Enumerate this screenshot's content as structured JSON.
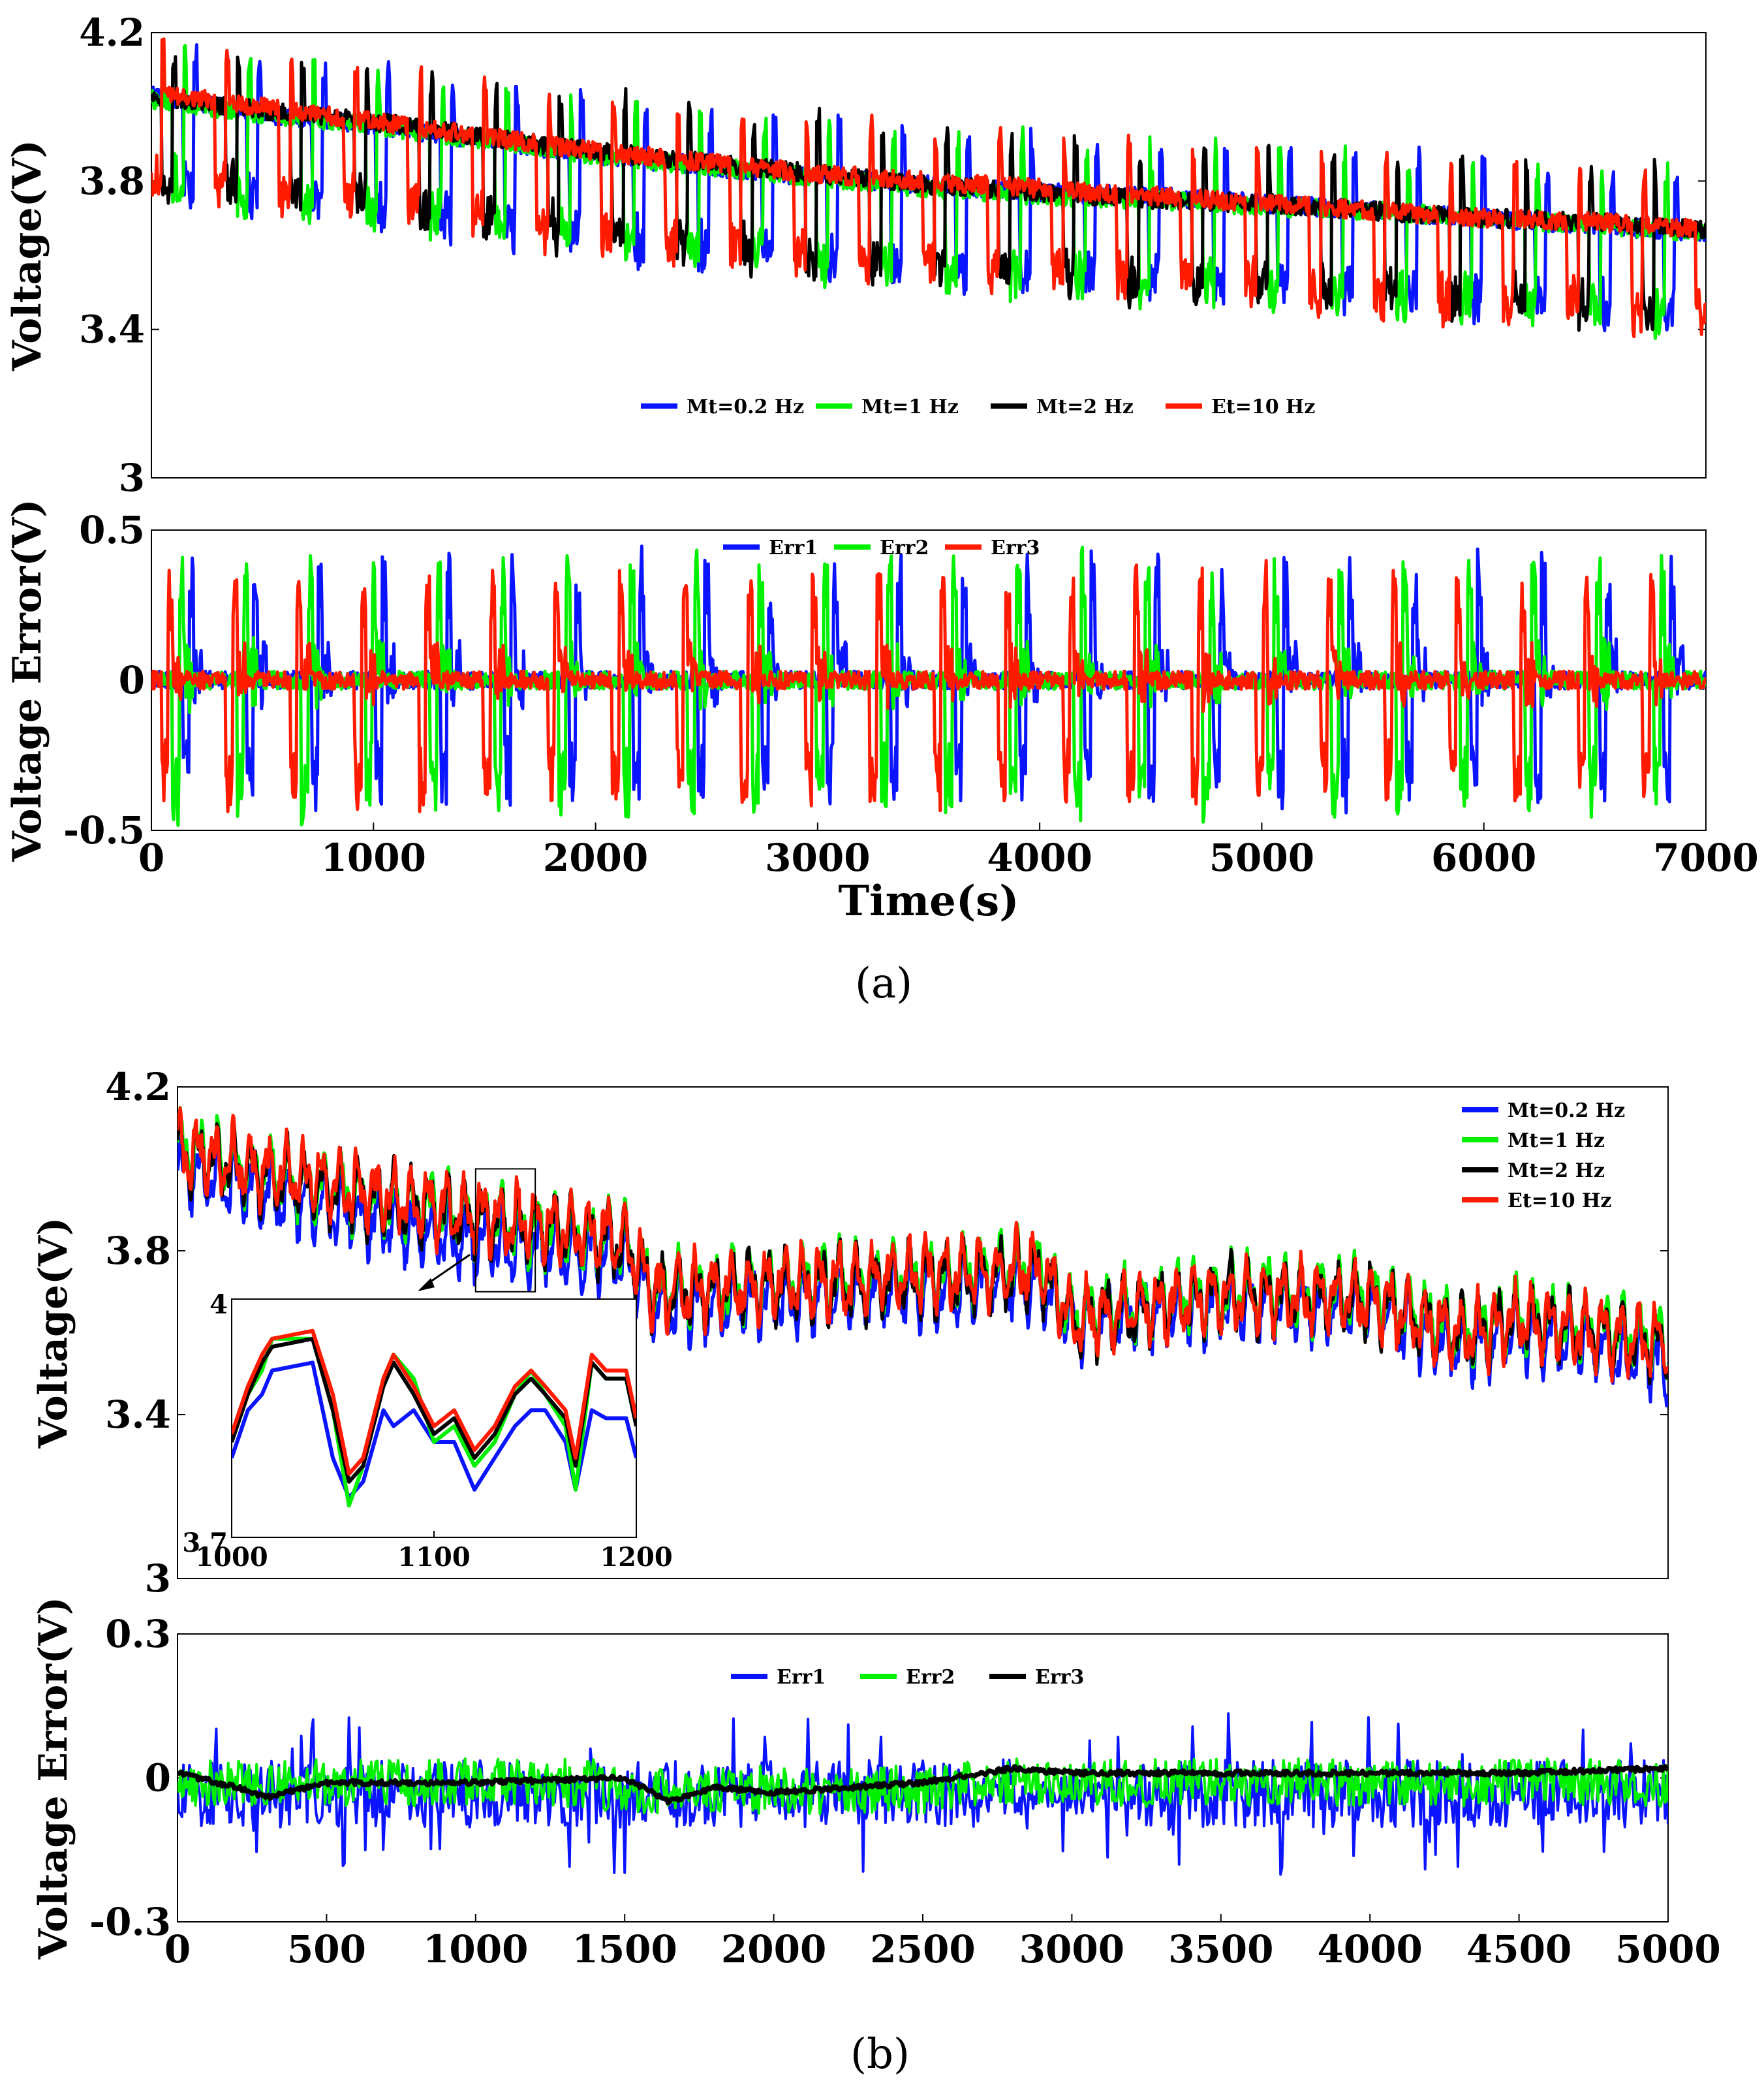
{
  "figure": {
    "panel_a_label": "(a)",
    "panel_b_label": "(b)"
  },
  "chart_data": [
    {
      "id": "a_voltage",
      "type": "line",
      "title": "",
      "xlabel": "",
      "ylabel": "Voltage(V)",
      "xlim": [
        0,
        7000
      ],
      "ylim": [
        3,
        4.2
      ],
      "yticks": [
        "4.2",
        "3.8",
        "3.4",
        "3"
      ],
      "ytick_values": [
        4.2,
        3.8,
        3.4,
        3.0
      ],
      "legend": [
        "Mt=0.2 Hz",
        "Mt=1 Hz",
        "Mt=2 Hz",
        "Et=10 Hz"
      ],
      "legend_position": "bottom-center",
      "series": [
        {
          "name": "Mt=0.2 Hz",
          "color": "#0a14ff",
          "x": [
            0,
            500,
            1000,
            1500,
            2000,
            2500,
            3000,
            3500,
            4000,
            4500,
            5000,
            5500,
            6000,
            6500,
            7000
          ],
          "values": [
            4.03,
            3.98,
            3.95,
            3.91,
            3.87,
            3.84,
            3.81,
            3.79,
            3.77,
            3.76,
            3.74,
            3.72,
            3.7,
            3.68,
            3.66
          ]
        },
        {
          "name": "Mt=1 Hz",
          "color": "#00f000",
          "x": [
            0,
            500,
            1000,
            1500,
            2000,
            2500,
            3000,
            3500,
            4000,
            4500,
            5000,
            5500,
            6000,
            6500,
            7000
          ],
          "values": [
            4.02,
            3.98,
            3.95,
            3.91,
            3.87,
            3.84,
            3.81,
            3.78,
            3.76,
            3.75,
            3.73,
            3.72,
            3.7,
            3.68,
            3.66
          ]
        },
        {
          "name": "Mt=2 Hz",
          "color": "#000000",
          "x": [
            0,
            500,
            1000,
            1500,
            2000,
            2500,
            3000,
            3500,
            4000,
            4500,
            5000,
            5500,
            6000,
            6500,
            7000
          ],
          "values": [
            4.03,
            3.99,
            3.96,
            3.92,
            3.88,
            3.85,
            3.82,
            3.79,
            3.77,
            3.75,
            3.74,
            3.72,
            3.7,
            3.69,
            3.67
          ]
        },
        {
          "name": "Et=10 Hz",
          "color": "#ff1a00",
          "x": [
            0,
            500,
            1000,
            1500,
            2000,
            2500,
            3000,
            3500,
            4000,
            4500,
            5000,
            5500,
            6000,
            6500,
            7000
          ],
          "values": [
            4.04,
            4.0,
            3.96,
            3.92,
            3.88,
            3.85,
            3.82,
            3.8,
            3.78,
            3.76,
            3.74,
            3.72,
            3.7,
            3.69,
            3.67
          ]
        }
      ]
    },
    {
      "id": "a_error",
      "type": "line",
      "xlabel": "Time(s)",
      "ylabel": "Voltage Error(V)",
      "xlim": [
        0,
        7000
      ],
      "ylim": [
        -0.5,
        0.5
      ],
      "yticks": [
        "0.5",
        "0",
        "-0.5"
      ],
      "ytick_values": [
        0.5,
        0,
        -0.5
      ],
      "xticks": [
        "0",
        "1000",
        "2000",
        "3000",
        "4000",
        "5000",
        "6000",
        "7000"
      ],
      "xtick_values": [
        0,
        1000,
        2000,
        3000,
        4000,
        5000,
        6000,
        7000
      ],
      "legend": [
        "Err1",
        "Err2",
        "Err3"
      ],
      "legend_position": "top-center",
      "series": [
        {
          "name": "Err1",
          "color": "#0a14ff",
          "amplitude": [
            -0.42,
            0.44
          ]
        },
        {
          "name": "Err2",
          "color": "#00f000",
          "amplitude": [
            -0.46,
            0.42
          ]
        },
        {
          "name": "Err3",
          "color": "#ff1a00",
          "amplitude": [
            -0.42,
            0.38
          ]
        }
      ]
    },
    {
      "id": "b_voltage",
      "type": "line",
      "ylabel": "Voltage(V)",
      "xlim": [
        0,
        5000
      ],
      "ylim": [
        3,
        4.2
      ],
      "yticks": [
        "4.2",
        "3.8",
        "3.4",
        "3"
      ],
      "ytick_values": [
        4.2,
        3.8,
        3.4,
        3.0
      ],
      "legend": [
        "Mt=0.2 Hz",
        "Mt=1 Hz",
        "Mt=2 Hz",
        "Et=10 Hz"
      ],
      "legend_position": "top-right",
      "series": [
        {
          "name": "Mt=0.2 Hz",
          "color": "#0a14ff",
          "x": [
            0,
            500,
            1000,
            1500,
            1600,
            2000,
            2500,
            2900,
            3000,
            3500,
            4000,
            4300,
            4500,
            5000
          ],
          "values": [
            4.0,
            3.9,
            3.82,
            3.78,
            3.66,
            3.68,
            3.7,
            3.72,
            3.62,
            3.67,
            3.66,
            3.56,
            3.6,
            3.52
          ]
        },
        {
          "name": "Mt=1 Hz",
          "color": "#00f000",
          "x": [
            0,
            500,
            1000,
            1500,
            1600,
            2000,
            2500,
            2900,
            3000,
            3500,
            4000,
            4300,
            4500,
            5000
          ],
          "values": [
            4.05,
            3.95,
            3.88,
            3.82,
            3.7,
            3.72,
            3.74,
            3.76,
            3.64,
            3.7,
            3.69,
            3.6,
            3.64,
            3.58
          ]
        },
        {
          "name": "Mt=2 Hz",
          "color": "#000000",
          "x": [
            0,
            500,
            1000,
            1500,
            1600,
            2000,
            2500,
            2900,
            3000,
            3500,
            4000,
            4300,
            4500,
            5000
          ],
          "values": [
            4.04,
            3.95,
            3.88,
            3.82,
            3.7,
            3.71,
            3.73,
            3.75,
            3.63,
            3.69,
            3.68,
            3.59,
            3.63,
            3.57
          ]
        },
        {
          "name": "Et=10 Hz",
          "color": "#ff1a00",
          "x": [
            0,
            500,
            1000,
            1500,
            1600,
            2000,
            2500,
            2900,
            3000,
            3500,
            4000,
            4300,
            4500,
            5000
          ],
          "values": [
            4.05,
            3.96,
            3.89,
            3.83,
            3.7,
            3.72,
            3.74,
            3.76,
            3.63,
            3.69,
            3.68,
            3.59,
            3.63,
            3.57
          ]
        }
      ],
      "inset": {
        "xlim": [
          1000,
          1200
        ],
        "ylim": [
          3.7,
          4.0
        ],
        "xticks": [
          "1000",
          "1100",
          "1200"
        ],
        "xtick_values": [
          1000,
          1100,
          1200
        ],
        "yticks": [
          "4",
          "3.7"
        ],
        "ytick_values": [
          4.0,
          3.7
        ],
        "x": [
          1000,
          1008,
          1015,
          1020,
          1040,
          1050,
          1058,
          1065,
          1075,
          1080,
          1090,
          1100,
          1110,
          1120,
          1130,
          1140,
          1148,
          1155,
          1165,
          1170,
          1178,
          1185,
          1195,
          1200
        ],
        "series": [
          {
            "name": "Mt=0.2 Hz",
            "color": "#0a14ff",
            "values": [
              3.8,
              3.86,
              3.88,
              3.91,
              3.92,
              3.8,
              3.75,
              3.77,
              3.86,
              3.84,
              3.86,
              3.82,
              3.82,
              3.76,
              3.8,
              3.84,
              3.86,
              3.86,
              3.82,
              3.76,
              3.86,
              3.85,
              3.85,
              3.8
            ]
          },
          {
            "name": "Mt=1 Hz",
            "color": "#00f000",
            "values": [
              3.82,
              3.88,
              3.91,
              3.95,
              3.95,
              3.86,
              3.74,
              3.79,
              3.9,
              3.93,
              3.9,
              3.82,
              3.84,
              3.79,
              3.82,
              3.88,
              3.91,
              3.88,
              3.84,
              3.76,
              3.92,
              3.9,
              3.9,
              3.84
            ]
          },
          {
            "name": "Mt=2 Hz",
            "color": "#000000",
            "values": [
              3.82,
              3.88,
              3.92,
              3.94,
              3.95,
              3.86,
              3.77,
              3.79,
              3.89,
              3.92,
              3.88,
              3.83,
              3.85,
              3.8,
              3.83,
              3.88,
              3.9,
              3.88,
              3.85,
              3.79,
              3.92,
              3.9,
              3.9,
              3.84
            ]
          },
          {
            "name": "Et=10 Hz",
            "color": "#ff1a00",
            "values": [
              3.83,
              3.89,
              3.93,
              3.95,
              3.96,
              3.88,
              3.78,
              3.8,
              3.9,
              3.93,
              3.89,
              3.84,
              3.86,
              3.81,
              3.84,
              3.89,
              3.91,
              3.89,
              3.86,
              3.8,
              3.93,
              3.91,
              3.91,
              3.85
            ]
          }
        ]
      }
    },
    {
      "id": "b_error",
      "type": "line",
      "ylabel": "Voltage Error(V)",
      "xlim": [
        0,
        5000
      ],
      "ylim": [
        -0.3,
        0.3
      ],
      "yticks": [
        "0.3",
        "0",
        "-0.3"
      ],
      "ytick_values": [
        0.3,
        0,
        -0.3
      ],
      "xticks": [
        "0",
        "500",
        "1000",
        "1500",
        "2000",
        "2500",
        "3000",
        "3500",
        "4000",
        "4500",
        "5000"
      ],
      "xtick_values": [
        0,
        500,
        1000,
        1500,
        2000,
        2500,
        3000,
        3500,
        4000,
        4500,
        5000
      ],
      "legend": [
        "Err1",
        "Err2",
        "Err3"
      ],
      "legend_position": "top-center",
      "series": [
        {
          "name": "Err1",
          "color": "#0a14ff",
          "amplitude": [
            -0.24,
            0.15
          ]
        },
        {
          "name": "Err2",
          "color": "#00f000",
          "amplitude": [
            -0.13,
            0.1
          ]
        },
        {
          "name": "Err3",
          "color": "#000000",
          "x": [
            0,
            200,
            300,
            500,
            1000,
            1500,
            1650,
            1800,
            2000,
            2500,
            2800,
            3000,
            3500,
            4000,
            4500,
            5000
          ],
          "values": [
            0.01,
            -0.02,
            -0.04,
            -0.01,
            -0.01,
            0.0,
            -0.05,
            -0.02,
            -0.03,
            -0.01,
            0.02,
            0.01,
            0.01,
            0.01,
            0.01,
            0.02
          ]
        }
      ]
    }
  ]
}
